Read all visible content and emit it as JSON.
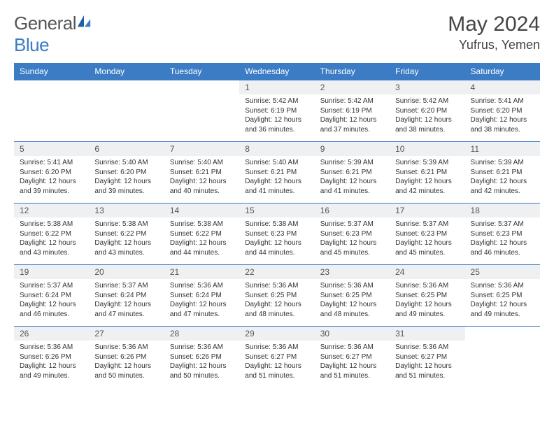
{
  "brand": {
    "part1": "General",
    "part2": "Blue"
  },
  "title": "May 2024",
  "location": "Yufrus, Yemen",
  "colors": {
    "header_bg": "#3b7cc4",
    "header_text": "#ffffff",
    "daynum_bg": "#eef0f2",
    "border": "#3b7cc4",
    "text": "#333333",
    "background": "#ffffff"
  },
  "weekdays": [
    "Sunday",
    "Monday",
    "Tuesday",
    "Wednesday",
    "Thursday",
    "Friday",
    "Saturday"
  ],
  "leading_blanks": 3,
  "days": [
    {
      "n": "1",
      "sr": "5:42 AM",
      "ss": "6:19 PM",
      "dl": "12 hours and 36 minutes."
    },
    {
      "n": "2",
      "sr": "5:42 AM",
      "ss": "6:19 PM",
      "dl": "12 hours and 37 minutes."
    },
    {
      "n": "3",
      "sr": "5:42 AM",
      "ss": "6:20 PM",
      "dl": "12 hours and 38 minutes."
    },
    {
      "n": "4",
      "sr": "5:41 AM",
      "ss": "6:20 PM",
      "dl": "12 hours and 38 minutes."
    },
    {
      "n": "5",
      "sr": "5:41 AM",
      "ss": "6:20 PM",
      "dl": "12 hours and 39 minutes."
    },
    {
      "n": "6",
      "sr": "5:40 AM",
      "ss": "6:20 PM",
      "dl": "12 hours and 39 minutes."
    },
    {
      "n": "7",
      "sr": "5:40 AM",
      "ss": "6:21 PM",
      "dl": "12 hours and 40 minutes."
    },
    {
      "n": "8",
      "sr": "5:40 AM",
      "ss": "6:21 PM",
      "dl": "12 hours and 41 minutes."
    },
    {
      "n": "9",
      "sr": "5:39 AM",
      "ss": "6:21 PM",
      "dl": "12 hours and 41 minutes."
    },
    {
      "n": "10",
      "sr": "5:39 AM",
      "ss": "6:21 PM",
      "dl": "12 hours and 42 minutes."
    },
    {
      "n": "11",
      "sr": "5:39 AM",
      "ss": "6:21 PM",
      "dl": "12 hours and 42 minutes."
    },
    {
      "n": "12",
      "sr": "5:38 AM",
      "ss": "6:22 PM",
      "dl": "12 hours and 43 minutes."
    },
    {
      "n": "13",
      "sr": "5:38 AM",
      "ss": "6:22 PM",
      "dl": "12 hours and 43 minutes."
    },
    {
      "n": "14",
      "sr": "5:38 AM",
      "ss": "6:22 PM",
      "dl": "12 hours and 44 minutes."
    },
    {
      "n": "15",
      "sr": "5:38 AM",
      "ss": "6:23 PM",
      "dl": "12 hours and 44 minutes."
    },
    {
      "n": "16",
      "sr": "5:37 AM",
      "ss": "6:23 PM",
      "dl": "12 hours and 45 minutes."
    },
    {
      "n": "17",
      "sr": "5:37 AM",
      "ss": "6:23 PM",
      "dl": "12 hours and 45 minutes."
    },
    {
      "n": "18",
      "sr": "5:37 AM",
      "ss": "6:23 PM",
      "dl": "12 hours and 46 minutes."
    },
    {
      "n": "19",
      "sr": "5:37 AM",
      "ss": "6:24 PM",
      "dl": "12 hours and 46 minutes."
    },
    {
      "n": "20",
      "sr": "5:37 AM",
      "ss": "6:24 PM",
      "dl": "12 hours and 47 minutes."
    },
    {
      "n": "21",
      "sr": "5:36 AM",
      "ss": "6:24 PM",
      "dl": "12 hours and 47 minutes."
    },
    {
      "n": "22",
      "sr": "5:36 AM",
      "ss": "6:25 PM",
      "dl": "12 hours and 48 minutes."
    },
    {
      "n": "23",
      "sr": "5:36 AM",
      "ss": "6:25 PM",
      "dl": "12 hours and 48 minutes."
    },
    {
      "n": "24",
      "sr": "5:36 AM",
      "ss": "6:25 PM",
      "dl": "12 hours and 49 minutes."
    },
    {
      "n": "25",
      "sr": "5:36 AM",
      "ss": "6:25 PM",
      "dl": "12 hours and 49 minutes."
    },
    {
      "n": "26",
      "sr": "5:36 AM",
      "ss": "6:26 PM",
      "dl": "12 hours and 49 minutes."
    },
    {
      "n": "27",
      "sr": "5:36 AM",
      "ss": "6:26 PM",
      "dl": "12 hours and 50 minutes."
    },
    {
      "n": "28",
      "sr": "5:36 AM",
      "ss": "6:26 PM",
      "dl": "12 hours and 50 minutes."
    },
    {
      "n": "29",
      "sr": "5:36 AM",
      "ss": "6:27 PM",
      "dl": "12 hours and 51 minutes."
    },
    {
      "n": "30",
      "sr": "5:36 AM",
      "ss": "6:27 PM",
      "dl": "12 hours and 51 minutes."
    },
    {
      "n": "31",
      "sr": "5:36 AM",
      "ss": "6:27 PM",
      "dl": "12 hours and 51 minutes."
    }
  ],
  "labels": {
    "sunrise": "Sunrise:",
    "sunset": "Sunset:",
    "daylight": "Daylight:"
  }
}
